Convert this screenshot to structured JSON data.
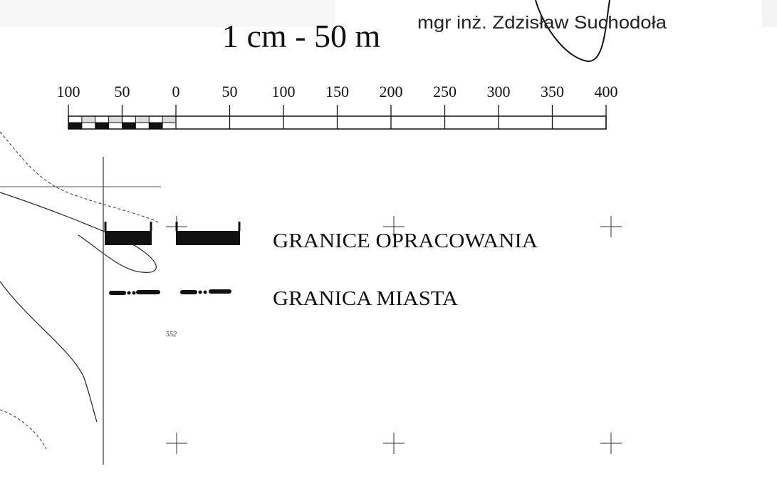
{
  "scale": {
    "ratio": "1 cm - 50 m",
    "author": "mgr inż. Zdzisław Suchodoła"
  },
  "scale_bar": {
    "labels": [
      100,
      50,
      0,
      50,
      100,
      150,
      200,
      250,
      300,
      350,
      400
    ]
  },
  "legend": [
    {
      "label": "GRANICE OPRACOWANIA"
    },
    {
      "label": "GRANICA MIASTA"
    }
  ],
  "map": {
    "contour_label": "552"
  }
}
